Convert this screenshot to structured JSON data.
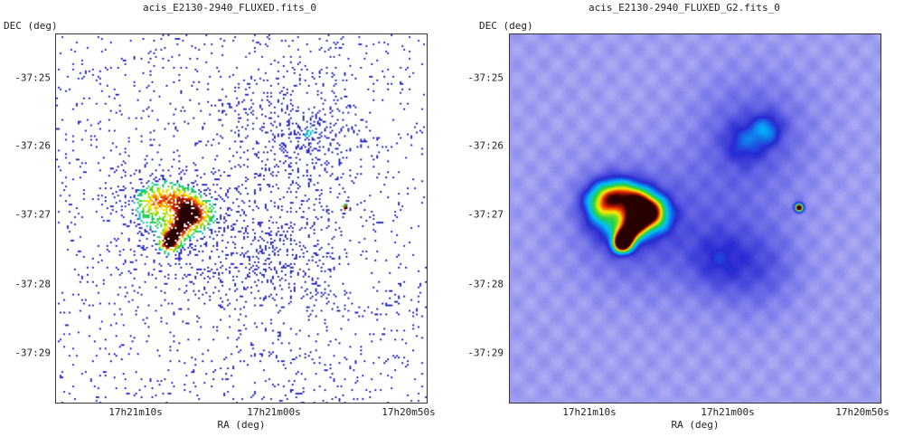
{
  "panels": [
    {
      "title": "acis_E2130-2940_FLUXED.fits_0",
      "ylabel": "DEC (deg)",
      "xlabel": "RA (deg)",
      "yticks": [
        "-37:25",
        "-37:26",
        "-37:27",
        "-37:28",
        "-37:29"
      ],
      "xticks": [
        "17h21m10s",
        "17h21m00s",
        "17h20m50s"
      ],
      "style": "raw"
    },
    {
      "title": "acis_E2130-2940_FLUXED_G2.fits_0",
      "ylabel": "DEC (deg)",
      "xlabel": "RA (deg)",
      "yticks": [
        "-37:25",
        "-37:26",
        "-37:27",
        "-37:28",
        "-37:29"
      ],
      "xticks": [
        "17h21m10s",
        "17h21m00s",
        "17h20m50s"
      ],
      "style": "smoothed"
    }
  ],
  "colors": {
    "frame": "#333333",
    "low": "#3b3bd8",
    "mid": "#00c8ff",
    "high_green": "#33cc33",
    "high_yellow": "#ffee00",
    "peak": "#dd1100"
  }
}
